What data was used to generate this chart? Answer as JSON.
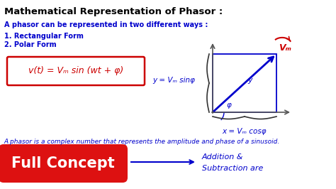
{
  "title": "Mathematical Representation of Phasor :",
  "subtitle": "A phasor can be represented in two different ways :",
  "list_items": [
    "1. Rectangular Form",
    "2. Polar Form"
  ],
  "formula": "v(t) = Vₘ sin (wt + φ)",
  "phasor_label_y": "y = Vₘ sinφ",
  "phasor_label_x": "x = Vₘ cosφ",
  "phasor_Vm": "Vₘ",
  "phasor_phi": "φ",
  "phasor_y_inner": "y",
  "bottom_text": "A phasor is a complex number that represents the amplitude and phase of a sinusoid.",
  "button_text": "Full Concept",
  "right_text_line1": "Addition &",
  "right_text_line2": "Subtraction are",
  "bg_color": "#ffffff",
  "title_color": "#000000",
  "subtitle_color": "#0000cc",
  "list_color": "#0000cc",
  "formula_box_color": "#cc0000",
  "formula_text_color": "#cc0000",
  "phasor_color": "#0000cc",
  "phasor_label_color": "#0000cc",
  "phasor_vm_color": "#cc0000",
  "phasor_axes_color": "#555555",
  "brace_color": "#333333",
  "button_bg": "#dd1111",
  "button_text_color": "#ffffff",
  "bottom_text_color": "#0000cc",
  "arrow_color": "#0000cc",
  "right_text_color": "#0000cc",
  "red_arc_color": "#cc0000",
  "fig_w": 4.74,
  "fig_h": 2.66,
  "dpi": 100
}
